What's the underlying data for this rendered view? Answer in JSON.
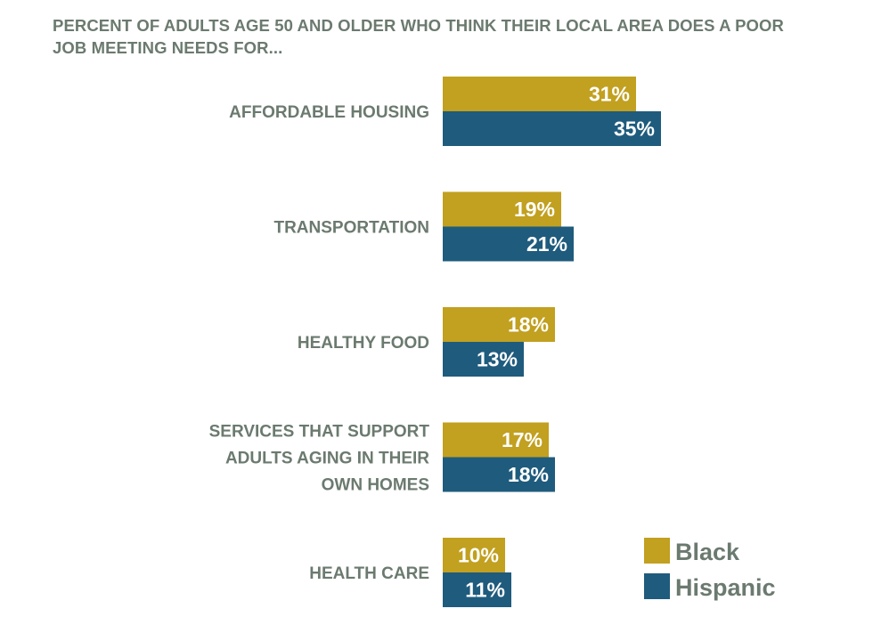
{
  "chart_data": {
    "type": "bar",
    "orientation": "horizontal",
    "title": "PERCENT OF ADULTS AGE 50 AND OLDER WHO THINK THEIR LOCAL AREA DOES A POOR JOB MEETING NEEDS FOR...",
    "categories": [
      [
        "AFFORDABLE HOUSING"
      ],
      [
        "TRANSPORTATION"
      ],
      [
        "HEALTHY FOOD"
      ],
      [
        "SERVICES THAT SUPPORT",
        "ADULTS AGING IN THEIR",
        "OWN HOMES"
      ],
      [
        "HEALTH CARE"
      ]
    ],
    "series": [
      {
        "name": "Black",
        "color": "#c2a020",
        "values": [
          31,
          19,
          18,
          17,
          10
        ],
        "labels": [
          "31%",
          "19%",
          "18%",
          "17%",
          "10%"
        ]
      },
      {
        "name": "Hispanic",
        "color": "#1f5b7d",
        "values": [
          35,
          21,
          13,
          18,
          11
        ],
        "labels": [
          "35%",
          "21%",
          "13%",
          "18%",
          "11%"
        ]
      }
    ],
    "xlim": [
      0,
      35
    ],
    "grid": false,
    "legend_position": "bottom-right",
    "text_color": "#6b7a6f",
    "value_label_color": "#ffffff"
  }
}
